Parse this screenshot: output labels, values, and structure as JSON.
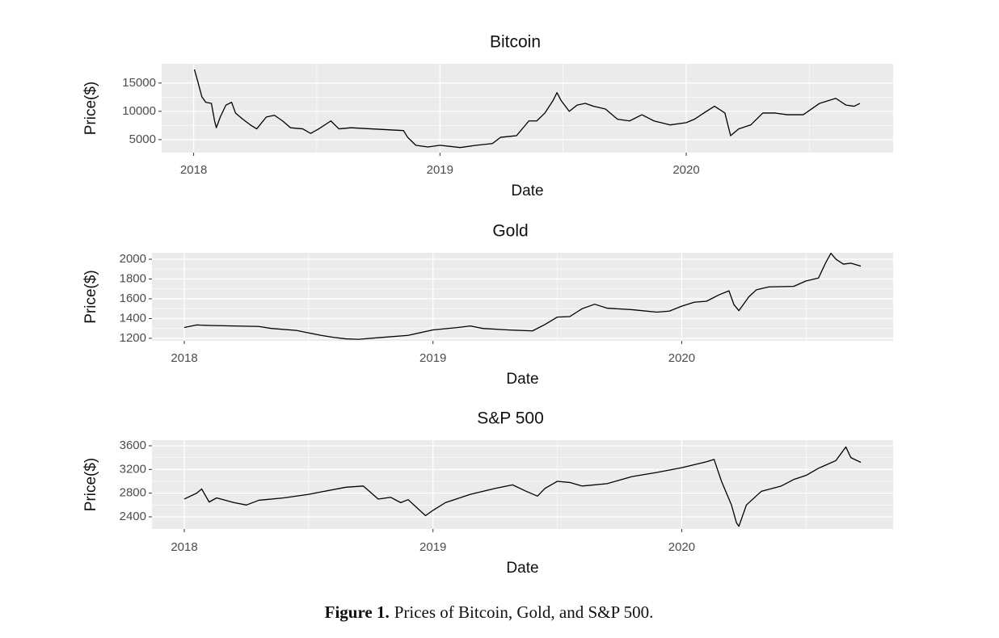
{
  "chart_data": [
    {
      "type": "line",
      "title": "Bitcoin",
      "x_label": "Date",
      "y_label": "Price($)",
      "x": [
        2018.003,
        2018.016,
        2018.033,
        2018.049,
        2018.072,
        2018.085,
        2018.092,
        2018.108,
        2018.131,
        2018.154,
        2018.17,
        2018.197,
        2018.23,
        2018.256,
        2018.295,
        2018.328,
        2018.361,
        2018.393,
        2018.443,
        2018.475,
        2018.508,
        2018.557,
        2018.59,
        2018.639,
        2018.721,
        2018.852,
        2018.869,
        2018.902,
        2018.951,
        2019.0,
        2019.082,
        2019.148,
        2019.213,
        2019.246,
        2019.311,
        2019.361,
        2019.393,
        2019.426,
        2019.459,
        2019.475,
        2019.492,
        2019.525,
        2019.557,
        2019.59,
        2019.623,
        2019.672,
        2019.721,
        2019.77,
        2019.82,
        2019.869,
        2019.934,
        2020.0,
        2020.033,
        2020.082,
        2020.115,
        2020.157,
        2020.18,
        2020.213,
        2020.262,
        2020.311,
        2020.361,
        2020.41,
        2020.475,
        2020.541,
        2020.607,
        2020.649,
        2020.682,
        2020.705
      ],
      "series": [
        {
          "color": "#000000",
          "values": [
            17400,
            15400,
            12600,
            11600,
            11400,
            8300,
            7100,
            9000,
            11100,
            11600,
            9700,
            8700,
            7600,
            6900,
            9000,
            9300,
            8300,
            7100,
            6900,
            6100,
            6900,
            8300,
            6900,
            7100,
            6900,
            6600,
            5400,
            4000,
            3700,
            4000,
            3600,
            4000,
            4300,
            5400,
            5700,
            8300,
            8300,
            9700,
            11900,
            13300,
            11900,
            10000,
            11100,
            11400,
            10900,
            10400,
            8600,
            8300,
            9400,
            8300,
            7600,
            8000,
            8600,
            10000,
            10900,
            9700,
            5700,
            6900,
            7600,
            9700,
            9700,
            9400,
            9400,
            11400,
            12300,
            11100,
            10900,
            11400
          ]
        }
      ],
      "xlim": [
        2017.87,
        2020.84
      ],
      "xticks": [
        2018,
        2019,
        2020
      ],
      "ylim": [
        2700,
        18400
      ],
      "yticks": [
        5000,
        10000,
        15000
      ],
      "grid": true
    },
    {
      "type": "line",
      "title": "Gold",
      "x_label": "Date",
      "y_label": "Price($)",
      "x": [
        2018.0,
        2018.05,
        2018.1,
        2018.2,
        2018.3,
        2018.35,
        2018.45,
        2018.55,
        2018.6,
        2018.65,
        2018.7,
        2018.8,
        2018.9,
        2019.0,
        2019.1,
        2019.15,
        2019.2,
        2019.3,
        2019.35,
        2019.4,
        2019.45,
        2019.5,
        2019.55,
        2019.6,
        2019.65,
        2019.7,
        2019.8,
        2019.9,
        2019.95,
        2020.0,
        2020.05,
        2020.1,
        2020.15,
        2020.19,
        2020.21,
        2020.23,
        2020.27,
        2020.3,
        2020.35,
        2020.45,
        2020.5,
        2020.55,
        2020.58,
        2020.6,
        2020.62,
        2020.65,
        2020.68,
        2020.72
      ],
      "series": [
        {
          "color": "#000000",
          "values": [
            1310,
            1335,
            1330,
            1325,
            1320,
            1300,
            1280,
            1230,
            1210,
            1195,
            1190,
            1210,
            1230,
            1285,
            1310,
            1325,
            1300,
            1285,
            1280,
            1275,
            1340,
            1415,
            1420,
            1500,
            1545,
            1505,
            1490,
            1465,
            1475,
            1525,
            1565,
            1575,
            1640,
            1680,
            1540,
            1480,
            1620,
            1690,
            1720,
            1725,
            1780,
            1810,
            1970,
            2060,
            2000,
            1950,
            1960,
            1930
          ]
        }
      ],
      "xlim": [
        2017.87,
        2020.85
      ],
      "xticks": [
        2018,
        2019,
        2020
      ],
      "ylim": [
        1175,
        2065
      ],
      "yticks": [
        1200,
        1400,
        1600,
        1800,
        2000
      ],
      "grid": true
    },
    {
      "type": "line",
      "title": "S&P 500",
      "x_label": "Date",
      "y_label": "Price($)",
      "x": [
        2018.0,
        2018.05,
        2018.07,
        2018.1,
        2018.13,
        2018.2,
        2018.25,
        2018.3,
        2018.4,
        2018.5,
        2018.55,
        2018.65,
        2018.72,
        2018.78,
        2018.83,
        2018.87,
        2018.9,
        2018.97,
        2019.0,
        2019.05,
        2019.15,
        2019.25,
        2019.32,
        2019.37,
        2019.42,
        2019.45,
        2019.5,
        2019.55,
        2019.6,
        2019.7,
        2019.8,
        2019.9,
        2020.0,
        2020.1,
        2020.13,
        2020.16,
        2020.2,
        2020.22,
        2020.23,
        2020.26,
        2020.32,
        2020.4,
        2020.45,
        2020.5,
        2020.55,
        2020.62,
        2020.66,
        2020.68,
        2020.72
      ],
      "series": [
        {
          "color": "#000000",
          "values": [
            2700,
            2800,
            2870,
            2650,
            2720,
            2640,
            2600,
            2680,
            2720,
            2780,
            2820,
            2900,
            2920,
            2700,
            2730,
            2640,
            2690,
            2420,
            2510,
            2640,
            2780,
            2880,
            2940,
            2840,
            2750,
            2880,
            3000,
            2980,
            2920,
            2960,
            3080,
            3150,
            3230,
            3330,
            3370,
            3000,
            2600,
            2300,
            2240,
            2600,
            2830,
            2920,
            3030,
            3100,
            3220,
            3350,
            3580,
            3400,
            3320
          ]
        }
      ],
      "xlim": [
        2017.87,
        2020.85
      ],
      "xticks": [
        2018,
        2019,
        2020
      ],
      "ylim": [
        2195,
        3695
      ],
      "yticks": [
        2400,
        2800,
        3200,
        3600
      ],
      "grid": true
    }
  ],
  "caption": {
    "label": "Figure 1.",
    "text": "Prices of Bitcoin, Gold, and S&P 500."
  }
}
